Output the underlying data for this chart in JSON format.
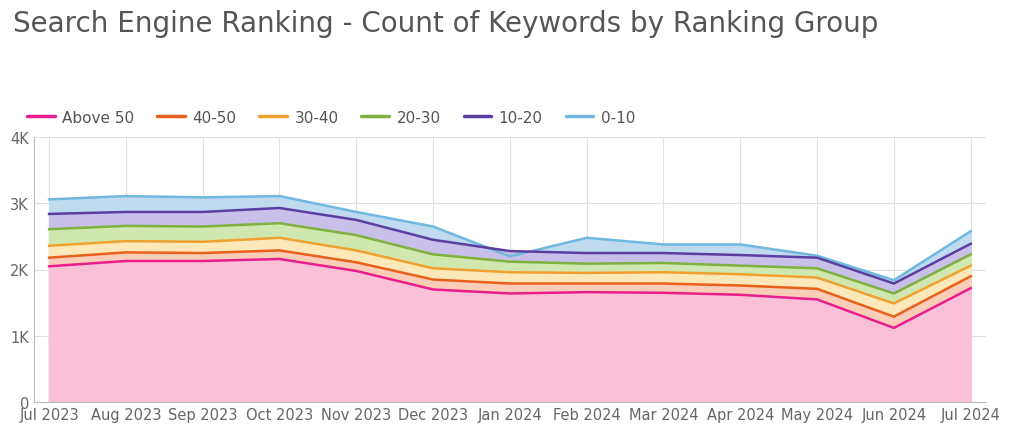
{
  "title": "Search Engine Ranking - Count of Keywords by Ranking Group",
  "x_labels": [
    "Jul 2023",
    "Aug 2023",
    "Sep 2023",
    "Oct 2023",
    "Nov 2023",
    "Dec 2023",
    "Jan 2024",
    "Feb 2024",
    "Mar 2024",
    "Apr 2024",
    "May 2024",
    "Jun 2024",
    "Jul 2024"
  ],
  "series": {
    "Above 50": [
      2050,
      2130,
      2130,
      2160,
      1980,
      1700,
      1640,
      1660,
      1650,
      1620,
      1550,
      1120,
      1720
    ],
    "40-50": [
      2180,
      2260,
      2250,
      2290,
      2110,
      1850,
      1790,
      1790,
      1790,
      1760,
      1710,
      1290,
      1900
    ],
    "30-40": [
      2360,
      2430,
      2420,
      2480,
      2290,
      2020,
      1960,
      1950,
      1960,
      1930,
      1880,
      1490,
      2060
    ],
    "20-30": [
      2610,
      2660,
      2650,
      2700,
      2520,
      2230,
      2120,
      2090,
      2100,
      2060,
      2020,
      1640,
      2230
    ],
    "10-20": [
      2840,
      2870,
      2870,
      2930,
      2750,
      2450,
      2280,
      2250,
      2250,
      2220,
      2180,
      1790,
      2390
    ],
    "0-10": [
      3060,
      3110,
      3090,
      3110,
      2870,
      2650,
      2200,
      2480,
      2380,
      2380,
      2210,
      1840,
      2580
    ]
  },
  "line_colors": {
    "Above 50": "#e91e8c",
    "40-50": "#e8601c",
    "30-40": "#f0a030",
    "20-30": "#80b040",
    "10-20": "#5b3fa0",
    "0-10": "#70b8e0"
  },
  "fill_colors": {
    "Above 50": "#f9c0d8",
    "40-50": "#f9cdb8",
    "30-40": "#fce8b8",
    "20-30": "#d0e8b0",
    "10-20": "#c8c0e8",
    "0-10": "#c0daf0"
  },
  "draw_order": [
    "0-10",
    "10-20",
    "20-30",
    "30-40",
    "40-50",
    "Above 50"
  ],
  "legend_order": [
    "Above 50",
    "40-50",
    "30-40",
    "20-30",
    "10-20",
    "0-10"
  ],
  "ylim": [
    0,
    4000
  ],
  "yticks": [
    0,
    1000,
    2000,
    3000,
    4000
  ],
  "ytick_labels": [
    "0",
    "1K",
    "2K",
    "3K",
    "4K"
  ],
  "background_color": "#ffffff",
  "grid_color": "#e0e0e0",
  "title_fontsize": 20,
  "tick_fontsize": 10.5,
  "legend_fontsize": 11
}
